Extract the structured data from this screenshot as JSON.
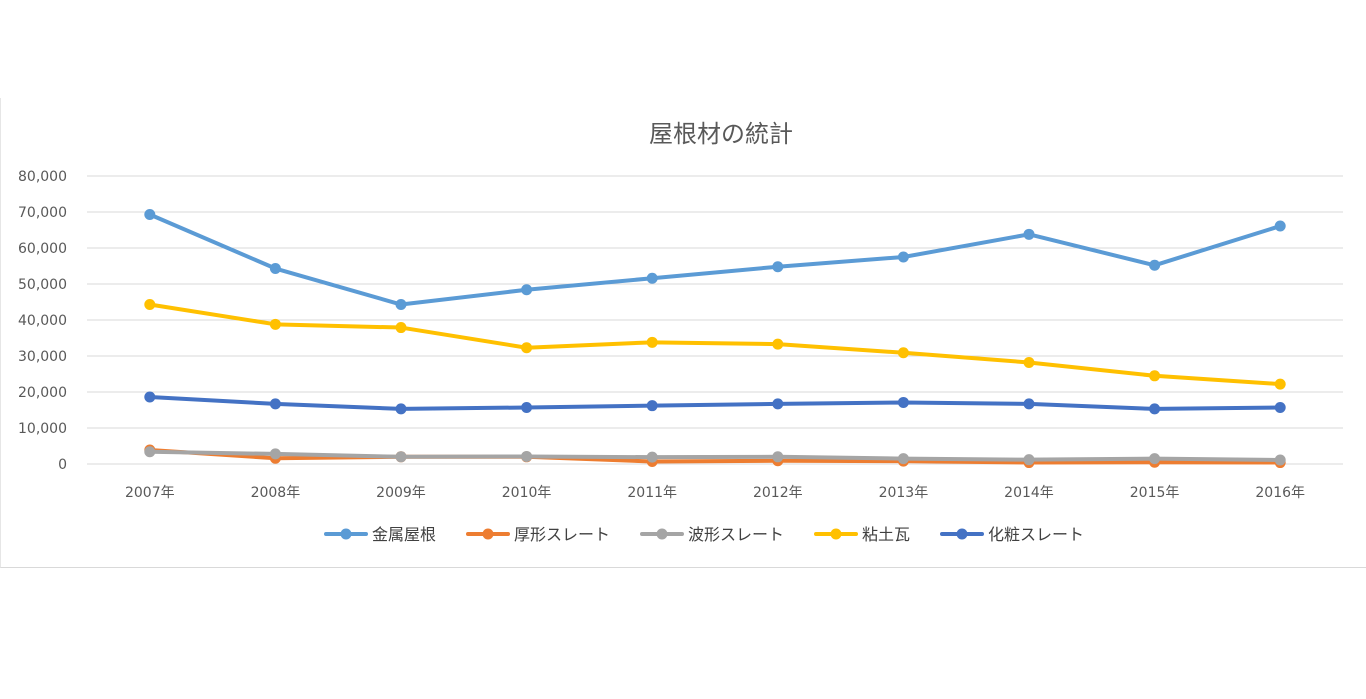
{
  "chart_data": {
    "type": "line",
    "title": "屋根材の統計",
    "xlabel": "",
    "ylabel": "",
    "categories": [
      "2007年",
      "2008年",
      "2009年",
      "2010年",
      "2011年",
      "2012年",
      "2013年",
      "2014年",
      "2015年",
      "2016年"
    ],
    "ylim": [
      0,
      80000
    ],
    "yticks": [
      0,
      10000,
      20000,
      30000,
      40000,
      50000,
      60000,
      70000,
      80000
    ],
    "ytick_labels": [
      "0",
      "10,000",
      "20,000",
      "30,000",
      "40,000",
      "50,000",
      "60,000",
      "70,000",
      "80,000"
    ],
    "grid": "horizontal",
    "legend": "bottom",
    "series": [
      {
        "name": "金属屋根",
        "color": "#5b9bd5",
        "values": [
          69300,
          54300,
          44300,
          48400,
          51600,
          54800,
          57500,
          63800,
          55200,
          66100
        ]
      },
      {
        "name": "厚形スレート",
        "color": "#ed7d31",
        "values": [
          3900,
          1600,
          2000,
          2000,
          700,
          900,
          800,
          400,
          500,
          400
        ]
      },
      {
        "name": "波形スレート",
        "color": "#a5a5a5",
        "values": [
          3400,
          2800,
          2000,
          2100,
          1900,
          2000,
          1500,
          1200,
          1500,
          1100
        ]
      },
      {
        "name": "粘土瓦",
        "color": "#ffc000",
        "values": [
          44300,
          38800,
          37900,
          32300,
          33800,
          33300,
          30900,
          28200,
          24500,
          22200
        ]
      },
      {
        "name": "化粧スレート",
        "color": "#4472c4",
        "values": [
          18600,
          16700,
          15300,
          15700,
          16200,
          16700,
          17100,
          16700,
          15300,
          15700
        ]
      }
    ]
  }
}
